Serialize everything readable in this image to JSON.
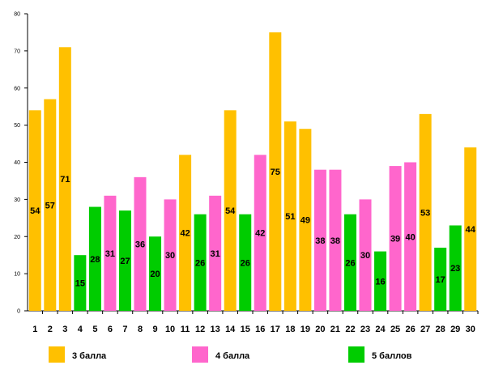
{
  "chart_data": {
    "type": "bar",
    "title": "",
    "xlabel": "",
    "ylabel": "",
    "ylim": [
      0,
      80
    ],
    "yticks": [
      0,
      10,
      20,
      30,
      40,
      50,
      60,
      70,
      80
    ],
    "grid": false,
    "legend_position": "bottom",
    "categories": [
      "1",
      "2",
      "3",
      "4",
      "5",
      "6",
      "7",
      "8",
      "9",
      "10",
      "11",
      "12",
      "13",
      "14",
      "15",
      "16",
      "17",
      "18",
      "19",
      "20",
      "21",
      "22",
      "23",
      "24",
      "25",
      "26",
      "27",
      "28",
      "29",
      "30"
    ],
    "values": [
      54,
      57,
      71,
      15,
      28,
      31,
      27,
      36,
      20,
      30,
      42,
      26,
      31,
      54,
      26,
      42,
      75,
      51,
      49,
      38,
      38,
      26,
      30,
      16,
      39,
      40,
      53,
      17,
      23,
      44
    ],
    "groups": [
      "g3",
      "g3",
      "g3",
      "g5",
      "g5",
      "g4",
      "g5",
      "g4",
      "g5",
      "g4",
      "g3",
      "g5",
      "g4",
      "g3",
      "g5",
      "g4",
      "g3",
      "g3",
      "g3",
      "g4",
      "g4",
      "g5",
      "g4",
      "g5",
      "g4",
      "g4",
      "g3",
      "g5",
      "g5",
      "g3"
    ],
    "series": [
      {
        "key": "g3",
        "name": "3 балла",
        "color": "#ffc000"
      },
      {
        "key": "g4",
        "name": "4 балла",
        "color": "#ff66cc"
      },
      {
        "key": "g5",
        "name": "5 баллов",
        "color": "#00cc00"
      }
    ]
  }
}
